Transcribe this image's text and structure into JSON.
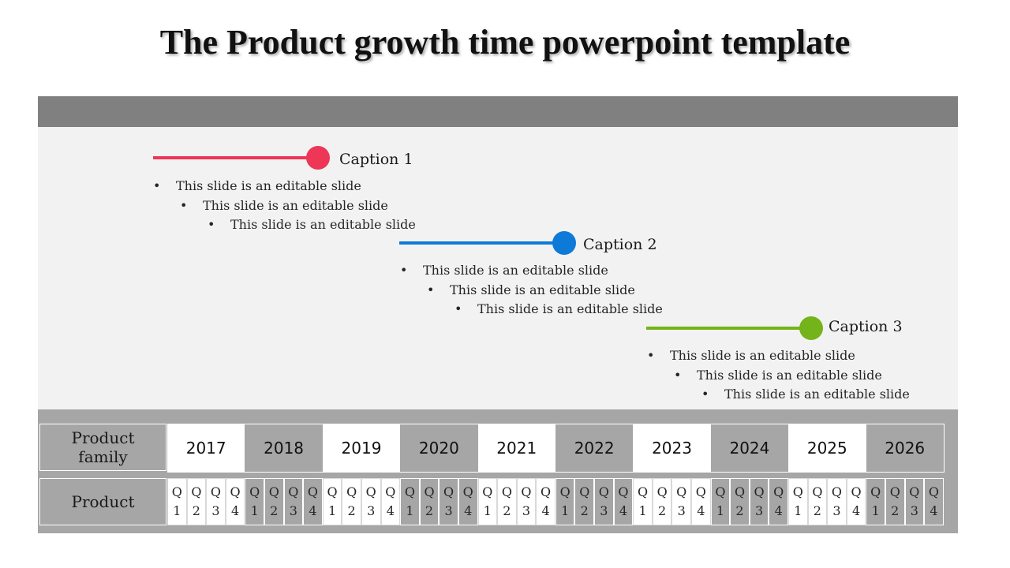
{
  "title": "The Product growth time powerpoint template",
  "steps": [
    {
      "caption": "Caption 1",
      "color": "#ee3656",
      "bullets": [
        "This slide is an editable slide",
        "This slide is an editable slide",
        "This slide is an editable slide"
      ]
    },
    {
      "caption": "Caption 2",
      "color": "#0e7ad8",
      "bullets": [
        "This slide is an editable slide",
        "This slide is an editable slide",
        "This slide is an editable slide"
      ]
    },
    {
      "caption": "Caption 3",
      "color": "#74b41a",
      "bullets": [
        "This slide is an editable slide",
        "This slide is an editable slide",
        "This slide is an editable slide"
      ]
    }
  ],
  "table": {
    "family_label": "Product family",
    "product_label": "Product",
    "years": [
      "2017",
      "2018",
      "2019",
      "2020",
      "2021",
      "2022",
      "2023",
      "2024",
      "2025",
      "2026"
    ],
    "quarter_top": "Q",
    "quarter_numbers": [
      "1",
      "2",
      "3",
      "4"
    ]
  }
}
